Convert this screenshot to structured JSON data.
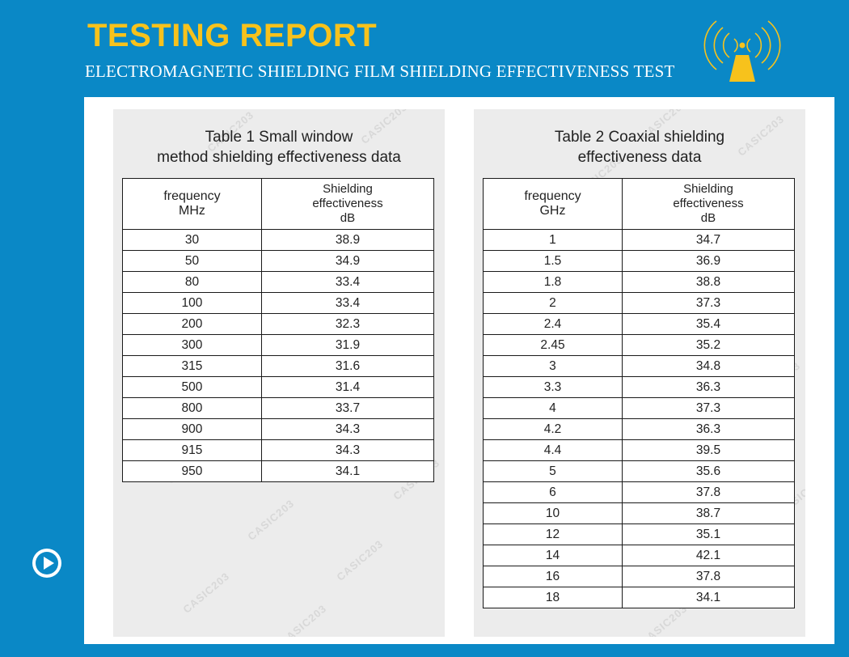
{
  "header": {
    "title": "TESTING REPORT",
    "subtitle": "ELECTROMAGNETIC SHIELDING FILM SHIELDING EFFECTIVENESS TEST",
    "logo_icon": "antenna-signal-icon",
    "accent_color": "#f7c21c",
    "background_color": "#0a88c6"
  },
  "controls": {
    "play_icon": "play-icon"
  },
  "watermark": "CASIC203",
  "table1": {
    "caption_line1": "Table 1  Small window",
    "caption_line2": "method shielding effectiveness data",
    "col1_line1": "frequency",
    "col1_line2": "MHz",
    "col2_line1": "Shielding",
    "col2_line2": "effectiveness",
    "col2_line3": "dB",
    "rows": [
      {
        "f": "30",
        "v": "38.9"
      },
      {
        "f": "50",
        "v": "34.9"
      },
      {
        "f": "80",
        "v": "33.4"
      },
      {
        "f": "100",
        "v": "33.4"
      },
      {
        "f": "200",
        "v": "32.3"
      },
      {
        "f": "300",
        "v": "31.9"
      },
      {
        "f": "315",
        "v": "31.6"
      },
      {
        "f": "500",
        "v": "31.4"
      },
      {
        "f": "800",
        "v": "33.7"
      },
      {
        "f": "900",
        "v": "34.3"
      },
      {
        "f": "915",
        "v": "34.3"
      },
      {
        "f": "950",
        "v": "34.1"
      }
    ]
  },
  "table2": {
    "caption_line1": "Table 2   Coaxial shielding",
    "caption_line2": "effectiveness data",
    "col1_line1": "frequency",
    "col1_line2": "GHz",
    "col2_line1": "Shielding",
    "col2_line2": "effectiveness",
    "col2_line3": "dB",
    "rows": [
      {
        "f": "1",
        "v": "34.7"
      },
      {
        "f": "1.5",
        "v": "36.9"
      },
      {
        "f": "1.8",
        "v": "38.8"
      },
      {
        "f": "2",
        "v": "37.3"
      },
      {
        "f": "2.4",
        "v": "35.4"
      },
      {
        "f": "2.45",
        "v": "35.2"
      },
      {
        "f": "3",
        "v": "34.8"
      },
      {
        "f": "3.3",
        "v": "36.3"
      },
      {
        "f": "4",
        "v": "37.3"
      },
      {
        "f": "4.2",
        "v": "36.3"
      },
      {
        "f": "4.4",
        "v": "39.5"
      },
      {
        "f": "5",
        "v": "35.6"
      },
      {
        "f": "6",
        "v": "37.8"
      },
      {
        "f": "10",
        "v": "38.7"
      },
      {
        "f": "12",
        "v": "35.1"
      },
      {
        "f": "14",
        "v": "42.1"
      },
      {
        "f": "16",
        "v": "37.8"
      },
      {
        "f": "18",
        "v": "34.1"
      }
    ]
  }
}
